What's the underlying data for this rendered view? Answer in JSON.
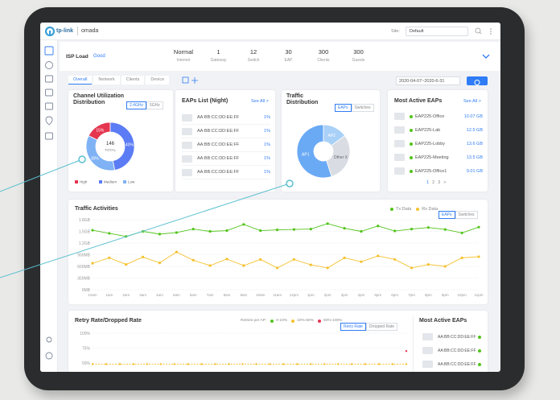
{
  "nav": {
    "brand": "tp-link",
    "product": "omada",
    "site_label": "Site:",
    "site": "Default"
  },
  "status": {
    "isp_label": "ISP Load",
    "isp_value": "Good",
    "items": [
      {
        "value": "Normal",
        "label": "Internet"
      },
      {
        "value": 1,
        "label": "Gateway"
      },
      {
        "value": 12,
        "label": "Switch"
      },
      {
        "value": 30,
        "label": "EAP"
      },
      {
        "value": 300,
        "label": "Clients"
      },
      {
        "value": 300,
        "label": "Guests"
      }
    ]
  },
  "tabs": [
    "Overall",
    "Network",
    "Clients",
    "Device"
  ],
  "date_range": "2020-04-07~2020-6-31",
  "channel": {
    "type": "donut",
    "title": "Channel Utilization Distribution",
    "tabs": [
      "2.4GHz",
      "5GHz"
    ],
    "center_value": 146,
    "center_label": "TOTAL",
    "categories": [
      "High",
      "Medium",
      "Low"
    ],
    "values": [
      15,
      40,
      30
    ],
    "value_labels": [
      "15%",
      "40%",
      "30%"
    ],
    "colors": [
      "#e5354f",
      "#5b7cf5",
      "#7fb2f5"
    ]
  },
  "eaps_list": {
    "title": "EAPs List (Night)",
    "link": "See All >",
    "rows": [
      {
        "name": "AA:BB:CC:DD:EE:FF",
        "value": "1%"
      },
      {
        "name": "AA:BB:CC:DD:EE:FF",
        "value": "1%"
      },
      {
        "name": "AA:BB:CC:DD:EE:FF",
        "value": "1%"
      },
      {
        "name": "AA:BB:CC:DD:EE:FF",
        "value": "1%"
      },
      {
        "name": "AA:BB:CC:DD:EE:FF",
        "value": "1%"
      }
    ]
  },
  "traffic_distribution": {
    "type": "donut",
    "title": "Traffic Distribution",
    "tabs": [
      "EAPs",
      "Switches"
    ],
    "categories": [
      "AP1",
      "AP2",
      "Other X"
    ],
    "values": [
      55,
      15,
      30
    ],
    "colors": [
      "#6aaaf5",
      "#a9d0f7",
      "#d9dde3"
    ]
  },
  "most_active": {
    "title": "Most Active EAPs",
    "link": "See All >",
    "rows": [
      {
        "name": "EAP225-Office",
        "value": "10.07 GB"
      },
      {
        "name": "EAP225-Lab",
        "value": "12.5 GB"
      },
      {
        "name": "EAP225-Lobby",
        "value": "13.6 GB"
      },
      {
        "name": "EAP225-Meeting",
        "value": "13.5 GB"
      },
      {
        "name": "EAP225-Office1",
        "value": "9.01 GB"
      }
    ],
    "pages": [
      "1",
      "2",
      "3",
      ">"
    ]
  },
  "traffic": {
    "type": "line",
    "title": "Traffic Activities",
    "tabs": [
      "EAPs",
      "Switches"
    ],
    "categories": [
      "12am",
      "1am",
      "2am",
      "3am",
      "4am",
      "5am",
      "6am",
      "7am",
      "8am",
      "9am",
      "10am",
      "11am",
      "12pm",
      "1pm",
      "2pm",
      "3pm",
      "4pm",
      "5pm",
      "6pm",
      "7pm",
      "8pm",
      "9pm",
      "10pm",
      "11pm"
    ],
    "series": [
      {
        "name": "Tx Data",
        "color": "#52c41a",
        "values": [
          1530,
          1450,
          1370,
          1500,
          1430,
          1470,
          1560,
          1500,
          1520,
          1680,
          1520,
          1540,
          1550,
          1560,
          1700,
          1580,
          1500,
          1640,
          1510,
          1560,
          1600,
          1550,
          1460,
          1610
        ]
      },
      {
        "name": "Rx Data",
        "color": "#f5c12e",
        "values": [
          680,
          820,
          650,
          840,
          690,
          970,
          760,
          620,
          790,
          620,
          780,
          560,
          780,
          640,
          560,
          820,
          720,
          870,
          780,
          560,
          650,
          600,
          820,
          850
        ]
      }
    ],
    "ylim": [
      0,
      1800
    ],
    "yticks": [
      {
        "value": 0,
        "label": "0MB"
      },
      {
        "value": 300,
        "label": "300MB"
      },
      {
        "value": 600,
        "label": "600MB"
      },
      {
        "value": 900,
        "label": "900MB"
      },
      {
        "value": 1200,
        "label": "1.2GB"
      },
      {
        "value": 1500,
        "label": "1.5GB"
      },
      {
        "value": 1800,
        "label": "1.8GB"
      }
    ]
  },
  "retry": {
    "type": "line",
    "title": "Retry Rate/Dropped Rate",
    "legend_title": "Retries per AP:",
    "tabs": [
      "Retry Rate",
      "Dropped Rate"
    ],
    "series": [
      {
        "name": "0-10%",
        "color": "#52c41a",
        "values": [
          null,
          null,
          null,
          null,
          null,
          null,
          null,
          null,
          null,
          null,
          null,
          null,
          null,
          null,
          null,
          null,
          null,
          null,
          null,
          null,
          null,
          null,
          null,
          null
        ]
      },
      {
        "name": "10%-50%",
        "color": "#f5c12e",
        "values": [
          48,
          48,
          48,
          48,
          48,
          48,
          48,
          48,
          48,
          48,
          48,
          48,
          48,
          48,
          48,
          48,
          48,
          48,
          48,
          48,
          48,
          48,
          48,
          48
        ]
      },
      {
        "name": "50%-100%",
        "color": "#e5354f",
        "values": [
          null,
          null,
          null,
          null,
          null,
          null,
          null,
          null,
          null,
          null,
          null,
          null,
          null,
          null,
          null,
          null,
          null,
          null,
          null,
          null,
          null,
          null,
          null,
          70
        ]
      }
    ],
    "ylim": [
      0,
      100
    ],
    "yticks": [
      {
        "value": 25,
        "label": "25%"
      },
      {
        "value": 50,
        "label": "50%"
      },
      {
        "value": 75,
        "label": "75%"
      },
      {
        "value": 100,
        "label": "100%"
      }
    ]
  },
  "retry_side": {
    "title": "Most Active EAPs",
    "rows": [
      "AA:BB:CC:DD:EE:FF",
      "AA:BB:CC:DD:EE:FF",
      "AA:BB:CC:DD:EE:FF"
    ]
  }
}
